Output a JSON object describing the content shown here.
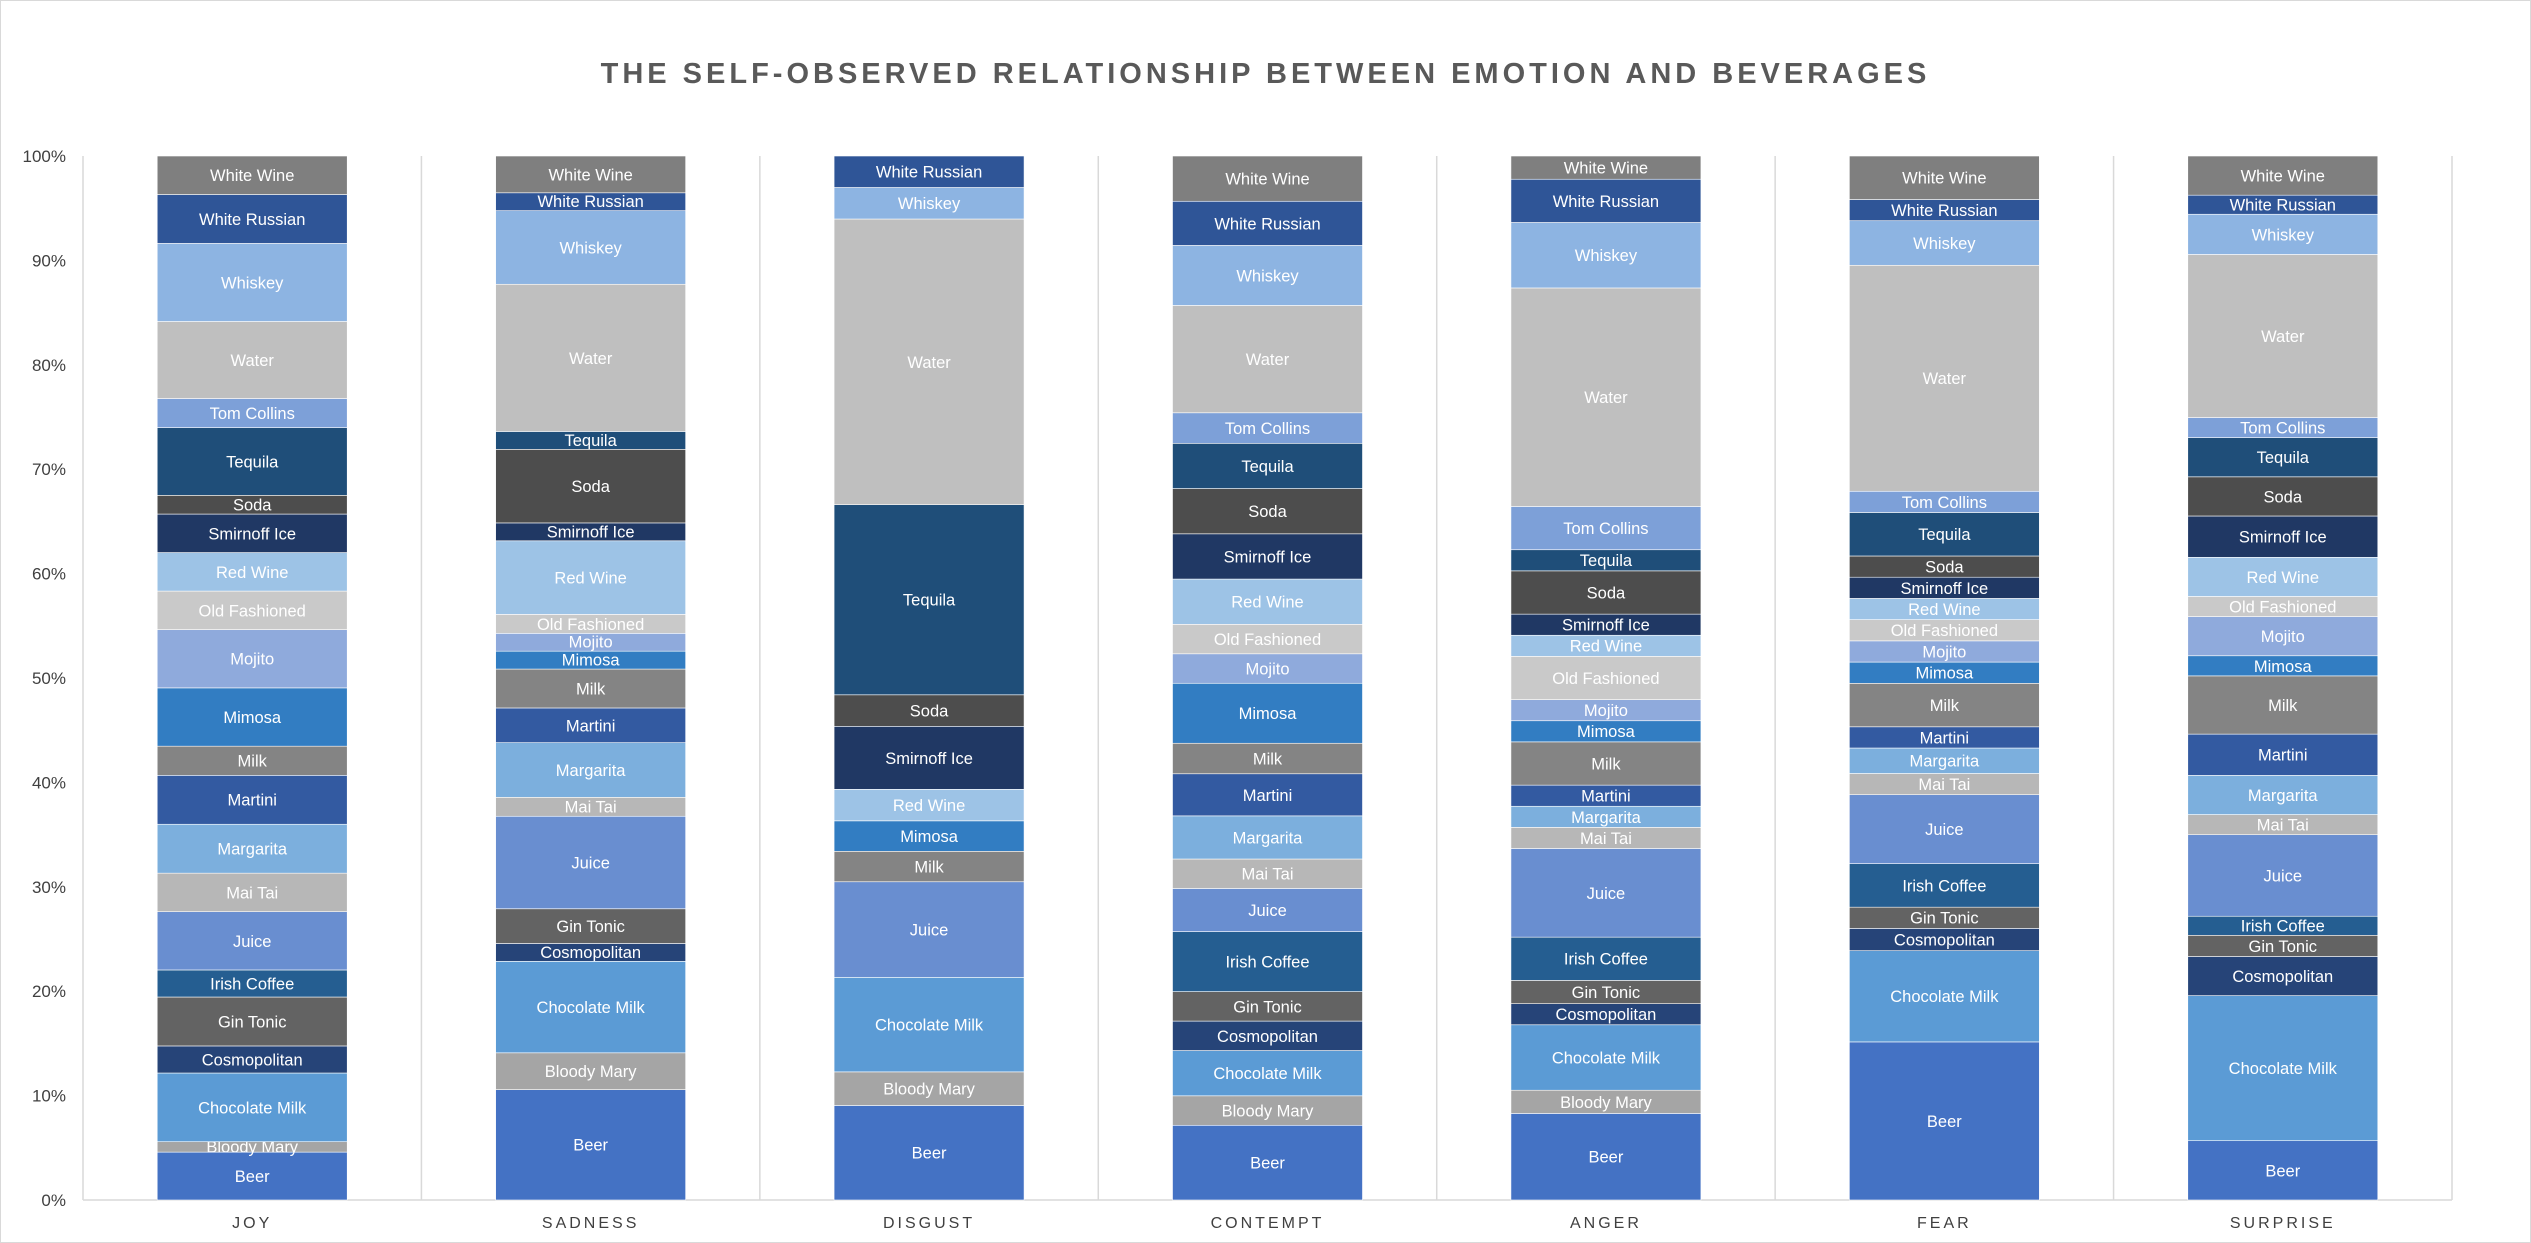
{
  "chart_data": {
    "type": "bar",
    "stacked": "percent",
    "title": "THE SELF-OBSERVED RELATIONSHIP BETWEEN EMOTION AND BEVERAGES",
    "xlabel": "",
    "ylabel": "",
    "ylim": [
      0,
      100
    ],
    "yticks": [
      "0%",
      "10%",
      "20%",
      "30%",
      "40%",
      "50%",
      "60%",
      "70%",
      "80%",
      "90%",
      "100%"
    ],
    "grid": false,
    "legend": "none",
    "categories": [
      "JOY",
      "SADNESS",
      "DISGUST",
      "CONTEMPT",
      "ANGER",
      "FEAR",
      "SURPRISE"
    ],
    "series": [
      {
        "name": "Beer",
        "color": "#4472c4",
        "values": [
          4.6,
          10.5,
          9.0,
          7.1,
          8.2,
          14.9,
          5.6
        ]
      },
      {
        "name": "Bloody Mary",
        "color": "#a5a5a5",
        "values": [
          1.0,
          3.5,
          3.2,
          2.8,
          2.2,
          0,
          0
        ]
      },
      {
        "name": "Chocolate Milk",
        "color": "#5b9bd5",
        "values": [
          6.6,
          8.7,
          9.0,
          4.3,
          6.2,
          8.6,
          13.7
        ]
      },
      {
        "name": "Cosmopolitan",
        "color": "#264478",
        "values": [
          2.6,
          1.7,
          0,
          2.8,
          2.0,
          2.1,
          3.7
        ]
      },
      {
        "name": "Gin Tonic",
        "color": "#636363",
        "values": [
          4.7,
          3.3,
          0,
          2.8,
          2.2,
          2.0,
          2.0
        ]
      },
      {
        "name": "Irish Coffee",
        "color": "#255e91",
        "values": [
          2.6,
          0,
          0,
          5.7,
          4.1,
          4.1,
          1.8
        ]
      },
      {
        "name": "Juice",
        "color": "#698ed0",
        "values": [
          5.6,
          8.8,
          9.1,
          4.1,
          8.4,
          6.5,
          7.7
        ]
      },
      {
        "name": "Mai Tai",
        "color": "#b7b7b7",
        "values": [
          3.7,
          1.8,
          0,
          2.8,
          2.0,
          2.0,
          1.9
        ]
      },
      {
        "name": "Margarita",
        "color": "#7cafdd",
        "values": [
          4.7,
          5.2,
          0,
          4.1,
          2.0,
          2.4,
          3.7
        ]
      },
      {
        "name": "Martini",
        "color": "#335aa1",
        "values": [
          4.7,
          3.3,
          0,
          4.0,
          2.0,
          2.0,
          3.9
        ]
      },
      {
        "name": "Milk",
        "color": "#848484",
        "values": [
          2.8,
          3.7,
          2.9,
          2.9,
          4.1,
          4.1,
          5.5
        ]
      },
      {
        "name": "Mimosa",
        "color": "#327dc2",
        "values": [
          5.6,
          1.7,
          2.9,
          5.7,
          2.0,
          2.0,
          1.9
        ]
      },
      {
        "name": "Mojito",
        "color": "#8faadc",
        "values": [
          5.6,
          1.7,
          0,
          2.8,
          2.0,
          2.0,
          3.7
        ]
      },
      {
        "name": "Old Fashioned",
        "color": "#c9c9c9",
        "values": [
          3.7,
          1.8,
          0,
          2.8,
          4.1,
          2.0,
          1.9
        ]
      },
      {
        "name": "Red Wine",
        "color": "#9dc3e6",
        "values": [
          3.7,
          7.0,
          3.0,
          4.3,
          2.0,
          2.0,
          3.7
        ]
      },
      {
        "name": "Smirnoff Ice",
        "color": "#203864",
        "values": [
          3.7,
          1.7,
          6.0,
          4.3,
          2.0,
          2.0,
          3.9
        ]
      },
      {
        "name": "Soda",
        "color": "#4d4d4d",
        "values": [
          1.8,
          7.0,
          3.0,
          4.3,
          4.1,
          2.0,
          3.7
        ]
      },
      {
        "name": "Tequila",
        "color": "#1f4e79",
        "values": [
          6.5,
          1.7,
          18.1,
          4.3,
          2.0,
          4.1,
          3.7
        ]
      },
      {
        "name": "Tom Collins",
        "color": "#7da0d8",
        "values": [
          2.8,
          0,
          0,
          2.9,
          4.1,
          2.0,
          1.9
        ]
      },
      {
        "name": "Water",
        "color": "#bfbfbf",
        "values": [
          7.4,
          14.0,
          27.2,
          10.2,
          20.7,
          21.3,
          15.4
        ]
      },
      {
        "name": "Whiskey",
        "color": "#8db4e2",
        "values": [
          7.5,
          7.0,
          3.0,
          5.7,
          6.2,
          4.2,
          3.8
        ]
      },
      {
        "name": "White Russian",
        "color": "#2f5597",
        "values": [
          4.7,
          1.7,
          3.0,
          4.2,
          4.1,
          2.0,
          1.8
        ]
      },
      {
        "name": "White Wine",
        "color": "#7f7f7f",
        "values": [
          3.7,
          3.5,
          0,
          4.3,
          2.2,
          4.1,
          3.7
        ]
      }
    ]
  }
}
